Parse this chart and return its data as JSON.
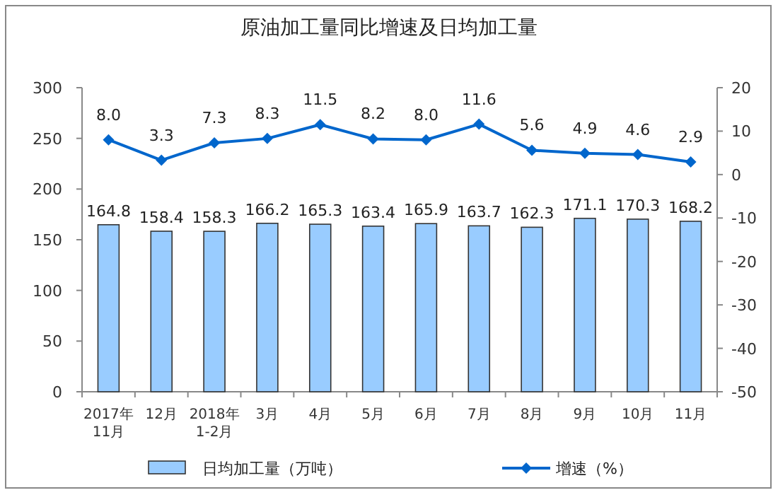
{
  "chart_data": {
    "type": "bar",
    "title": "原油加工量同比增速及日均加工量",
    "categories": [
      "2017年\n11月",
      "12月",
      "2018年\n1-2月",
      "3月",
      "4月",
      "5月",
      "6月",
      "7月",
      "8月",
      "9月",
      "10月",
      "11月"
    ],
    "series": [
      {
        "name": "日均加工量（万吨）",
        "color": "#99ccff",
        "values": [
          164.8,
          158.4,
          158.3,
          166.2,
          165.3,
          163.4,
          165.9,
          163.7,
          162.3,
          171.1,
          170.3,
          168.2
        ],
        "value_labels": [
          "164.8",
          "158.4",
          "158.3",
          "166.2",
          "165.3",
          "163.4",
          "165.9",
          "163.7",
          "162.3",
          "171.1",
          "170.3",
          "168.2"
        ]
      },
      {
        "name": "增速（%）",
        "type": "line",
        "axis": "y2",
        "color": "#0066cc",
        "marker": "diamond",
        "values": [
          8.0,
          3.3,
          7.3,
          8.3,
          11.5,
          8.2,
          8.0,
          11.6,
          5.6,
          4.9,
          4.6,
          2.9
        ],
        "value_labels": [
          "8.0",
          "3.3",
          "7.3",
          "8.3",
          "11.5",
          "8.2",
          "8.0",
          "11.6",
          "5.6",
          "4.9",
          "4.6",
          "2.9"
        ]
      }
    ],
    "ylim": [
      0,
      300
    ],
    "yticks": [
      0,
      50,
      100,
      150,
      200,
      250,
      300
    ],
    "y2lim": [
      -50,
      20
    ],
    "y2ticks": [
      -50,
      -40,
      -30,
      -20,
      -10,
      0,
      10,
      20
    ],
    "legend": "bottom",
    "grid": false
  }
}
